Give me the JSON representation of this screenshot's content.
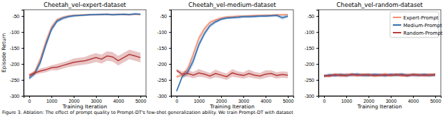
{
  "chart_data": [
    {
      "type": "line",
      "title": "Cheetah_vel-expert-dataset",
      "x_label": "Training Iteration",
      "y_label": "Episode Return",
      "x": [
        0,
        250,
        500,
        750,
        1000,
        1250,
        1500,
        1750,
        2000,
        2250,
        2500,
        2750,
        3000,
        3250,
        3500,
        3750,
        4000,
        4250,
        4500,
        4750,
        5000
      ],
      "xlim": [
        -250,
        5250
      ],
      "xticks": [
        0,
        1000,
        2000,
        3000,
        4000,
        5000
      ],
      "ylim": [
        -300,
        -30
      ],
      "yticks": [
        -300,
        -250,
        -200,
        -150,
        -100,
        -50
      ],
      "grid": false,
      "series": [
        {
          "name": "Expert-Prompt",
          "color": "#f28e6e",
          "values": [
            -240,
            -225,
            -185,
            -130,
            -85,
            -62,
            -55,
            -50,
            -48,
            -47,
            -46,
            -45,
            -46,
            -44,
            -45,
            -45,
            -44,
            -45,
            -46,
            -44,
            -45
          ],
          "error": [
            5,
            8,
            10,
            10,
            8,
            6,
            5,
            4,
            4,
            3,
            3,
            3,
            3,
            3,
            3,
            3,
            3,
            3,
            3,
            3,
            3
          ]
        },
        {
          "name": "Medium-Prompt",
          "color": "#2f6db0",
          "values": [
            -245,
            -230,
            -195,
            -140,
            -92,
            -66,
            -57,
            -52,
            -49,
            -48,
            -47,
            -46,
            -45,
            -45,
            -44,
            -46,
            -45,
            -44,
            -45,
            -43,
            -44
          ],
          "error": [
            5,
            8,
            10,
            10,
            8,
            6,
            5,
            4,
            4,
            3,
            3,
            3,
            3,
            3,
            3,
            3,
            3,
            3,
            3,
            3,
            3
          ]
        },
        {
          "name": "Random-Prompt",
          "color": "#b53a3a",
          "values": [
            -235,
            -228,
            -222,
            -218,
            -212,
            -210,
            -205,
            -200,
            -195,
            -192,
            -190,
            -185,
            -180,
            -185,
            -175,
            -178,
            -190,
            -180,
            -170,
            -175,
            -180
          ],
          "error": [
            5,
            6,
            8,
            8,
            8,
            10,
            10,
            10,
            12,
            12,
            12,
            14,
            14,
            14,
            15,
            15,
            15,
            15,
            15,
            15,
            15
          ]
        }
      ]
    },
    {
      "type": "line",
      "title": "Cheetah_vel-medium-dataset",
      "x_label": "Training Iteration",
      "x": [
        0,
        250,
        500,
        750,
        1000,
        1250,
        1500,
        1750,
        2000,
        2250,
        2500,
        2750,
        3000,
        3250,
        3500,
        3750,
        4000,
        4250,
        4500,
        4750,
        5000
      ],
      "xlim": [
        -250,
        5250
      ],
      "xticks": [
        0,
        1000,
        2000,
        3000,
        4000,
        5000
      ],
      "ylim": [
        -300,
        -30
      ],
      "yticks": [
        -300,
        -250,
        -200,
        -150,
        -100,
        -50
      ],
      "grid": false,
      "series": [
        {
          "name": "Expert-Prompt",
          "color": "#f28e6e",
          "values": [
            -240,
            -235,
            -215,
            -170,
            -120,
            -90,
            -70,
            -62,
            -56,
            -53,
            -52,
            -50,
            -50,
            -49,
            -48,
            -48,
            -47,
            -47,
            -46,
            -46,
            -45
          ],
          "error": [
            5,
            6,
            10,
            12,
            10,
            8,
            6,
            5,
            4,
            4,
            4,
            3,
            3,
            3,
            3,
            3,
            3,
            3,
            3,
            3,
            3
          ]
        },
        {
          "name": "Medium-Prompt",
          "color": "#2f6db0",
          "values": [
            -285,
            -240,
            -225,
            -190,
            -140,
            -105,
            -80,
            -68,
            -60,
            -56,
            -55,
            -54,
            -52,
            -52,
            -51,
            -50,
            -50,
            -49,
            -48,
            -55,
            -50
          ],
          "error": [
            5,
            6,
            10,
            12,
            10,
            8,
            6,
            5,
            4,
            4,
            4,
            4,
            4,
            4,
            4,
            4,
            4,
            4,
            4,
            6,
            5
          ]
        },
        {
          "name": "Random-Prompt",
          "color": "#b53a3a",
          "values": [
            -220,
            -232,
            -230,
            -235,
            -228,
            -232,
            -238,
            -230,
            -235,
            -240,
            -228,
            -233,
            -236,
            -230,
            -235,
            -238,
            -232,
            -230,
            -236,
            -233,
            -235
          ],
          "error": [
            5,
            8,
            10,
            10,
            12,
            10,
            10,
            12,
            10,
            10,
            12,
            10,
            10,
            12,
            10,
            10,
            12,
            10,
            10,
            10,
            10
          ]
        }
      ]
    },
    {
      "type": "line",
      "title": "Cheetah_vel-random-dataset",
      "x_label": "Training Iteration",
      "legend": "upper right",
      "x": [
        0,
        250,
        500,
        750,
        1000,
        1250,
        1500,
        1750,
        2000,
        2250,
        2500,
        2750,
        3000,
        3250,
        3500,
        3750,
        4000,
        4250,
        4500,
        4750,
        5000
      ],
      "xlim": [
        -250,
        5250
      ],
      "xticks": [
        0,
        1000,
        2000,
        3000,
        4000,
        5000
      ],
      "ylim": [
        -300,
        -30
      ],
      "yticks": [
        -300,
        -250,
        -200,
        -150,
        -100,
        -50
      ],
      "grid": false,
      "series": [
        {
          "name": "Expert-Prompt",
          "color": "#f28e6e",
          "values": [
            -240,
            -236,
            -234,
            -238,
            -232,
            -236,
            -235,
            -233,
            -237,
            -234,
            -236,
            -232,
            -235,
            -234,
            -237,
            -233,
            -235,
            -236,
            -234,
            -233,
            -235
          ],
          "error": [
            4,
            5,
            5,
            5,
            5,
            5,
            5,
            5,
            5,
            5,
            5,
            5,
            5,
            5,
            5,
            5,
            5,
            5,
            5,
            5,
            5
          ]
        },
        {
          "name": "Medium-Prompt",
          "color": "#2f6db0",
          "values": [
            -238,
            -234,
            -237,
            -233,
            -236,
            -234,
            -232,
            -236,
            -235,
            -233,
            -234,
            -237,
            -233,
            -235,
            -232,
            -236,
            -234,
            -235,
            -233,
            -236,
            -234
          ],
          "error": [
            4,
            5,
            5,
            5,
            5,
            5,
            5,
            5,
            5,
            5,
            5,
            5,
            5,
            5,
            5,
            5,
            5,
            5,
            5,
            5,
            5
          ]
        },
        {
          "name": "Random-Prompt",
          "color": "#b53a3a",
          "values": [
            -236,
            -238,
            -233,
            -235,
            -237,
            -232,
            -236,
            -234,
            -233,
            -237,
            -235,
            -234,
            -236,
            -233,
            -235,
            -237,
            -233,
            -234,
            -236,
            -235,
            -233
          ],
          "error": [
            4,
            5,
            5,
            5,
            5,
            5,
            5,
            5,
            5,
            5,
            5,
            5,
            5,
            5,
            5,
            5,
            5,
            5,
            5,
            5,
            5
          ]
        }
      ]
    }
  ],
  "caption": "Figure 3. Ablation: The effect of prompt quality to Prompt-DT's few-shot generalization ability. We train Prompt-DT with dataset"
}
